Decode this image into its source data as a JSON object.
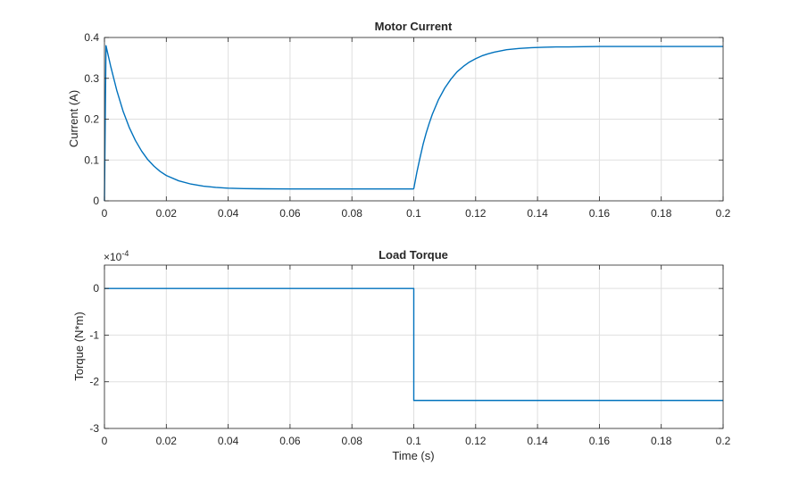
{
  "colors": {
    "series": "#0072bd",
    "grid": "#dfdfdf",
    "axis": "#262626",
    "background": "#ffffff"
  },
  "chart_data": [
    {
      "type": "line",
      "title": "Motor Current",
      "xlabel": "",
      "ylabel": "Current (A)",
      "xlim": [
        0,
        0.2
      ],
      "ylim": [
        0,
        0.4
      ],
      "xticks": [
        0,
        0.02,
        0.04,
        0.06,
        0.08,
        0.1,
        0.12,
        0.14,
        0.16,
        0.18,
        0.2
      ],
      "xtick_labels": [
        "0",
        "0.02",
        "0.04",
        "0.06",
        "0.08",
        "0.1",
        "0.12",
        "0.14",
        "0.16",
        "0.18",
        "0.2"
      ],
      "yticks": [
        0,
        0.1,
        0.2,
        0.3,
        0.4
      ],
      "ytick_labels": [
        "0",
        "0.1",
        "0.2",
        "0.3",
        "0.4"
      ],
      "exponent_label": "",
      "grid": true,
      "series": [
        {
          "x": [
            0,
            0.0005,
            0.002,
            0.004,
            0.006,
            0.008,
            0.01,
            0.012,
            0.014,
            0.016,
            0.018,
            0.02,
            0.024,
            0.028,
            0.032,
            0.036,
            0.04,
            0.045,
            0.05,
            0.06,
            0.07,
            0.08,
            0.09,
            0.0998,
            0.1,
            0.101,
            0.102,
            0.103,
            0.104,
            0.105,
            0.106,
            0.108,
            0.11,
            0.112,
            0.114,
            0.116,
            0.118,
            0.12,
            0.122,
            0.124,
            0.126,
            0.128,
            0.13,
            0.134,
            0.138,
            0.142,
            0.146,
            0.15,
            0.16,
            0.17,
            0.18,
            0.19,
            0.2
          ],
          "y": [
            0.0,
            0.38,
            0.33,
            0.27,
            0.22,
            0.18,
            0.148,
            0.122,
            0.101,
            0.085,
            0.072,
            0.062,
            0.049,
            0.041,
            0.036,
            0.033,
            0.031,
            0.03,
            0.0295,
            0.029,
            0.029,
            0.029,
            0.029,
            0.029,
            0.03,
            0.07,
            0.105,
            0.138,
            0.166,
            0.19,
            0.212,
            0.248,
            0.276,
            0.298,
            0.316,
            0.329,
            0.34,
            0.348,
            0.355,
            0.36,
            0.364,
            0.367,
            0.37,
            0.373,
            0.375,
            0.376,
            0.377,
            0.377,
            0.378,
            0.378,
            0.378,
            0.378,
            0.378
          ]
        }
      ]
    },
    {
      "type": "line",
      "title": "Load Torque",
      "xlabel": "Time (s)",
      "ylabel": "Torque (N*m)",
      "xlim": [
        0,
        0.2
      ],
      "ylim": [
        -3,
        0.5
      ],
      "xticks": [
        0,
        0.02,
        0.04,
        0.06,
        0.08,
        0.1,
        0.12,
        0.14,
        0.16,
        0.18,
        0.2
      ],
      "xtick_labels": [
        "0",
        "0.02",
        "0.04",
        "0.06",
        "0.08",
        "0.1",
        "0.12",
        "0.14",
        "0.16",
        "0.18",
        "0.2"
      ],
      "yticks": [
        -3,
        -2,
        -1,
        0
      ],
      "ytick_labels": [
        "-3",
        "-2",
        "-1",
        "0"
      ],
      "exponent_label": "×10",
      "exponent_power": "-4",
      "grid": true,
      "series": [
        {
          "x": [
            0,
            0.1,
            0.1,
            0.2
          ],
          "y": [
            0,
            0,
            -2.4,
            -2.4
          ]
        }
      ]
    }
  ]
}
